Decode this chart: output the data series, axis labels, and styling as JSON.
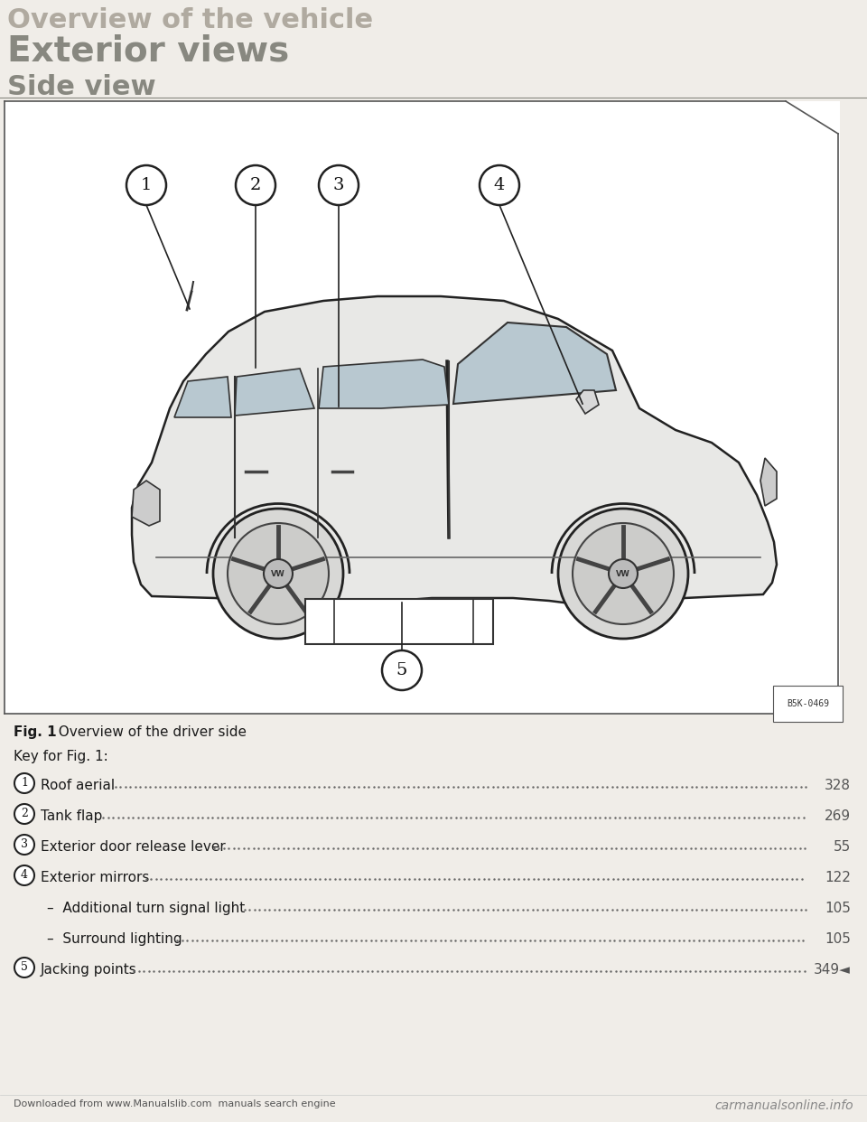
{
  "bg_color": "#f0ede8",
  "header_text": "Overview of the vehicle",
  "header_color": "#b0aaa0",
  "header_fontsize": 22,
  "section_title": "Exterior views",
  "section_title_color": "#888880",
  "section_title_fontsize": 28,
  "subsection_title": "Side view",
  "subsection_title_color": "#888880",
  "subsection_title_fontsize": 22,
  "fig_label": "Fig. 1",
  "fig_desc": "  Overview of the driver side",
  "key_label": "Key for Fig. 1:",
  "image_code": "B5K-0469",
  "items": [
    {
      "num": "1",
      "text": "Roof aerial",
      "page": "328"
    },
    {
      "num": "2",
      "text": "Tank flap",
      "page": "269"
    },
    {
      "num": "3",
      "text": "Exterior door release lever",
      "page": "55"
    },
    {
      "num": "4",
      "text": "Exterior mirrors",
      "page": "122"
    },
    {
      "num": "",
      "text": "–  Additional turn signal light",
      "page": "105"
    },
    {
      "num": "",
      "text": "–  Surround lighting",
      "page": "105"
    },
    {
      "num": "5",
      "text": "Jacking points",
      "page": "349◄"
    }
  ],
  "footer_left": "Downloaded from www.Manualslib.com  manuals search engine",
  "footer_right": "carmanualsonline.info",
  "text_color": "#1a1a1a",
  "page_num_color": "#555555"
}
